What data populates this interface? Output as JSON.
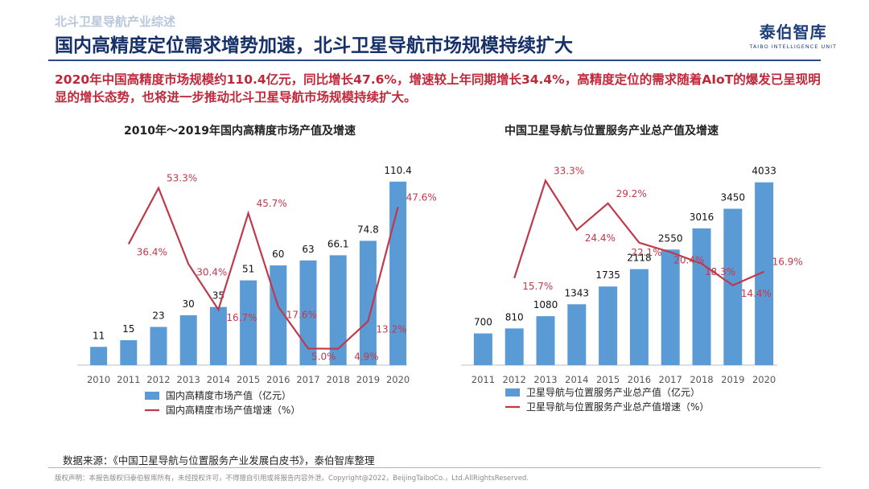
{
  "header": {
    "kicker": "北斗卫星导航产业综述",
    "title": "国内高精度定位需求增势加速，北斗卫星导航市场规模持续扩大",
    "logo_main": "泰伯智库",
    "logo_sub": "TAIBO INTELLIGENCE UNIT"
  },
  "summary": "2020年中国高精度市场规模约110.4亿元，同比增长47.6%，增速较上年同期增长34.4%，高精度定位的需求随着AIoT的爆发已呈现明显的增长态势，也将进一步推动北斗卫星导航市场规模持续扩大。",
  "colors": {
    "bar": "#5b9bd5",
    "line": "#c0394b",
    "title": "#16306a",
    "accent": "#c0283a"
  },
  "chart_data": [
    {
      "type": "bar",
      "title": "2010年～2019年国内高精度市场产值及增速",
      "categories": [
        "2010",
        "2011",
        "2012",
        "2013",
        "2014",
        "2015",
        "2016",
        "2017",
        "2018",
        "2019",
        "2020"
      ],
      "series": [
        {
          "name": "国内高精度市场产值（亿元）",
          "kind": "bar",
          "values": [
            11,
            15,
            23,
            30,
            35,
            51,
            60,
            63,
            66.1,
            74.8,
            110.4
          ],
          "labels": [
            "11",
            "15",
            "23",
            "30",
            "35",
            "51",
            "60",
            "63",
            "66.1",
            "74.8",
            "110.4"
          ]
        },
        {
          "name": "国内高精度市场产值增速（%）",
          "kind": "line",
          "values": [
            null,
            36.4,
            53.3,
            30.4,
            16.7,
            45.7,
            17.6,
            5.0,
            4.9,
            13.2,
            47.6
          ],
          "labels": [
            "",
            "36.4%",
            "53.3%",
            "30.4%",
            "16.7%",
            "45.7%",
            "17.6%",
            "5.0%",
            "4.9%",
            "13.2%",
            "47.6%"
          ]
        }
      ],
      "ylim": [
        0,
        120
      ],
      "y2lim": [
        0,
        60
      ],
      "grid": false,
      "legend": "bottom"
    },
    {
      "type": "bar",
      "title": "中国卫星导航与位置服务产业总产值及增速",
      "categories": [
        "2011",
        "2012",
        "2013",
        "2014",
        "2015",
        "2016",
        "2017",
        "2018",
        "2019",
        "2020"
      ],
      "series": [
        {
          "name": "卫星导航与位置服务产业总产值（亿元）",
          "kind": "bar",
          "values": [
            700,
            810,
            1080,
            1343,
            1735,
            2118,
            2550,
            3016,
            3450,
            4033
          ],
          "labels": [
            "700",
            "810",
            "1080",
            "1343",
            "1735",
            "2118",
            "2550",
            "3016",
            "3450",
            "4033"
          ]
        },
        {
          "name": "卫星导航与位置服务产业总产值增速（%）",
          "kind": "line",
          "values": [
            null,
            15.7,
            33.3,
            24.4,
            29.2,
            22.1,
            20.4,
            18.3,
            14.4,
            16.9
          ],
          "labels": [
            "",
            "15.7%",
            "33.3%",
            "24.4%",
            "29.2%",
            "22.1%",
            "20.4%",
            "18.3%",
            "14.4%",
            "16.9%"
          ]
        }
      ],
      "ylim": [
        0,
        4400
      ],
      "y2lim": [
        0,
        36
      ],
      "grid": false,
      "legend": "bottom"
    }
  ],
  "footer": {
    "source": "数据来源：《中国卫星导航与位置服务产业发展白皮书》，泰伯智库整理",
    "copyright": "版权声明：本报告版权归泰伯智库所有，未经授权许可，不得擅自引用或将报告内容外泄。Copyright@2022，BeijingTaiboCo.，Ltd.AllRightsReserved."
  }
}
